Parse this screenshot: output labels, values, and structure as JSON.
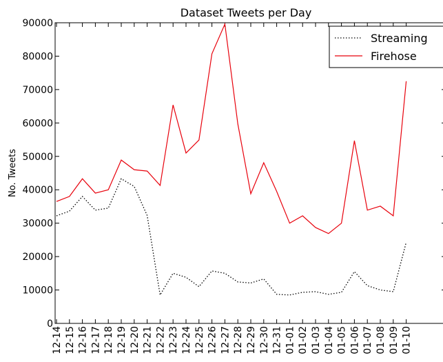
{
  "chart_data": {
    "type": "line",
    "title": "Dataset Tweets per Day",
    "y_label": "No. Tweets",
    "categories": [
      "12-14",
      "12-15",
      "12-16",
      "12-17",
      "12-18",
      "12-19",
      "12-20",
      "12-21",
      "12-22",
      "12-23",
      "12-24",
      "12-25",
      "12-26",
      "12-27",
      "12-28",
      "12-29",
      "12-30",
      "12-31",
      "01-01",
      "01-02",
      "01-03",
      "01-04",
      "01-05",
      "01-06",
      "01-07",
      "01-08",
      "01-09",
      "01-10"
    ],
    "series": [
      {
        "name": "Streaming",
        "color": "#000000",
        "dash": "dotted",
        "values": [
          32200,
          33600,
          38000,
          33900,
          34500,
          43300,
          41000,
          32300,
          8500,
          15000,
          13800,
          11000,
          15700,
          15000,
          12400,
          12100,
          13300,
          8700,
          8500,
          9300,
          9500,
          8700,
          9300,
          15500,
          11300,
          10000,
          9500,
          24300
        ]
      },
      {
        "name": "Firehose",
        "color": "#e8000b",
        "dash": "solid",
        "values": [
          36500,
          38000,
          43300,
          39000,
          40000,
          48900,
          46000,
          45600,
          41300,
          65400,
          51000,
          54900,
          80700,
          89600,
          59700,
          38800,
          48100,
          39500,
          30000,
          32200,
          28700,
          26900,
          30000,
          54700,
          33900,
          35100,
          32200,
          72500
        ]
      }
    ],
    "ylim": [
      0,
      90000
    ],
    "yticks": [
      0,
      10000,
      20000,
      30000,
      40000,
      50000,
      60000,
      70000,
      80000,
      90000
    ],
    "legend": "upper right"
  }
}
